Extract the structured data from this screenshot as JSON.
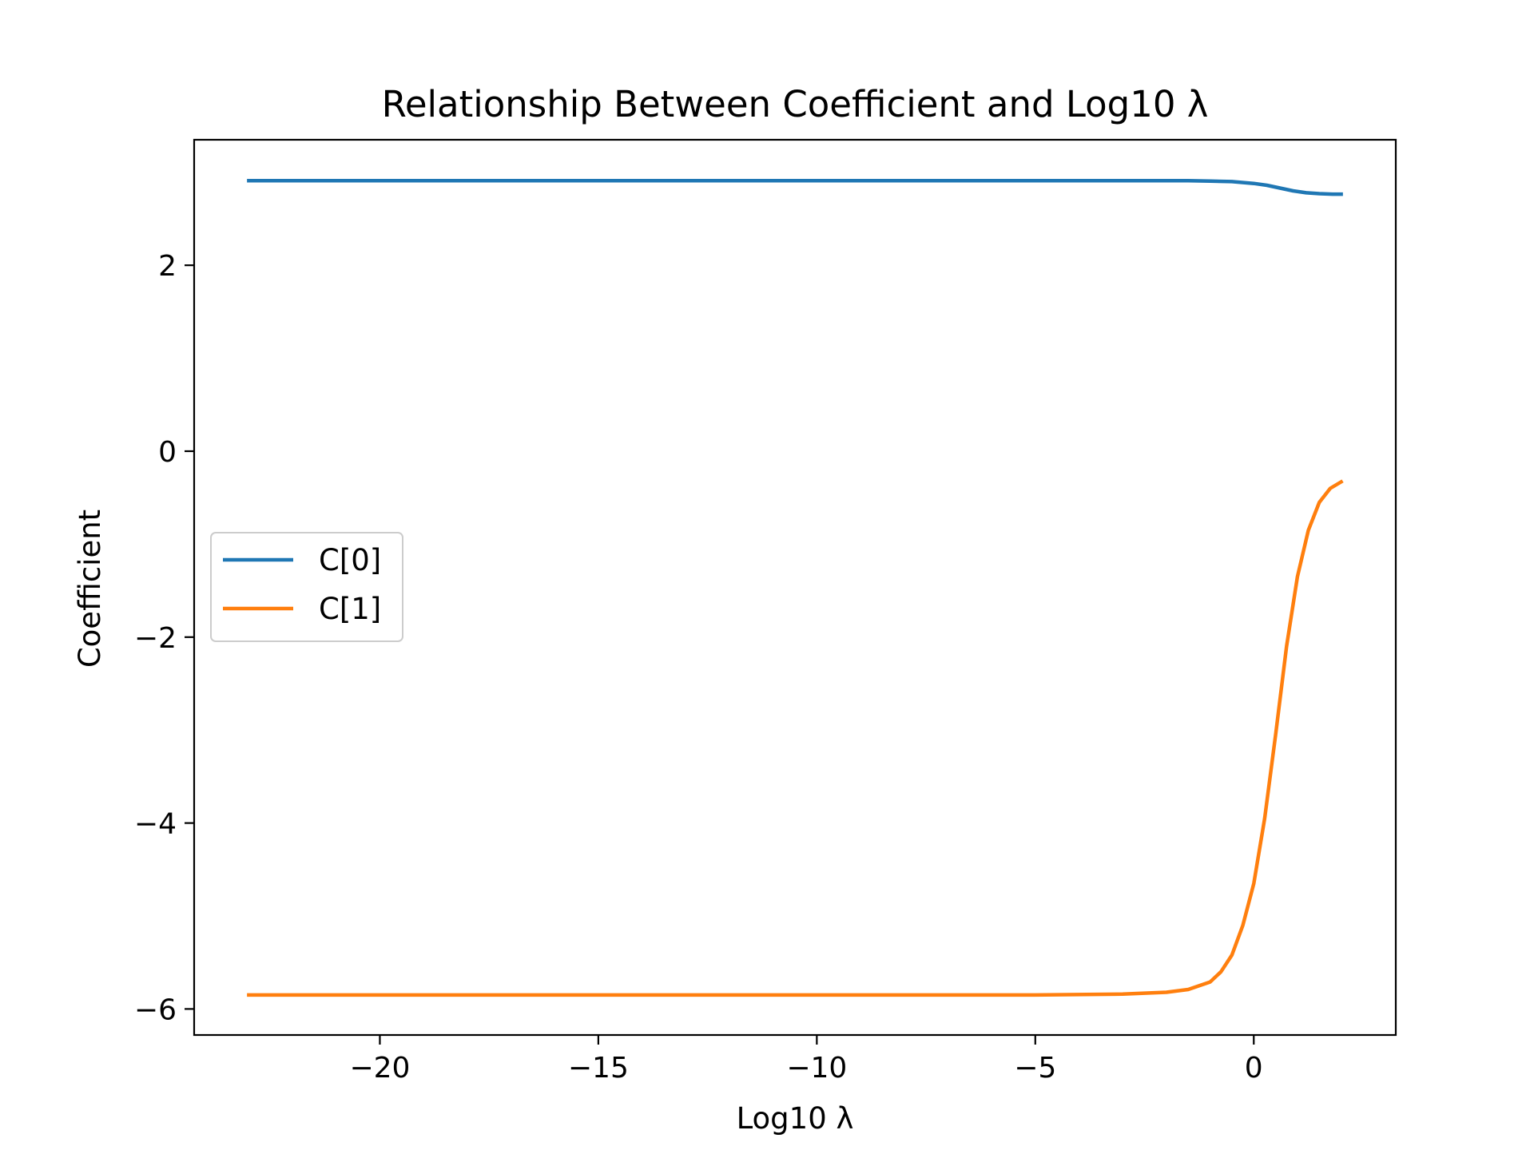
{
  "chart_data": {
    "type": "line",
    "title": "Relationship Between Coefficient and Log10 λ",
    "xlabel": "Log10 λ",
    "ylabel": "Coefficient",
    "xlim": [
      -24.25,
      3.25
    ],
    "ylim": [
      -6.28,
      3.35
    ],
    "xticks": [
      -20,
      -15,
      -10,
      -5,
      0
    ],
    "xtick_labels": [
      "−20",
      "−15",
      "−10",
      "−5",
      "0"
    ],
    "yticks": [
      2,
      0,
      -2,
      -4,
      -6
    ],
    "ytick_labels": [
      "2",
      "0",
      "−2",
      "−4",
      "−6"
    ],
    "grid": false,
    "legend_position": "center-left",
    "series": [
      {
        "name": "C[0]",
        "color": "#1f77b4",
        "x": [
          -23,
          -15,
          -10,
          -5,
          -3,
          -2,
          -1.5,
          -1,
          -0.5,
          0,
          0.3,
          0.6,
          0.9,
          1.2,
          1.5,
          1.8,
          2
        ],
        "y": [
          2.91,
          2.91,
          2.91,
          2.91,
          2.91,
          2.91,
          2.91,
          2.905,
          2.9,
          2.88,
          2.86,
          2.83,
          2.8,
          2.78,
          2.77,
          2.765,
          2.765
        ]
      },
      {
        "name": "C[1]",
        "color": "#ff7f0e",
        "x": [
          -23,
          -15,
          -10,
          -5,
          -3,
          -2,
          -1.5,
          -1,
          -0.75,
          -0.5,
          -0.25,
          0,
          0.25,
          0.5,
          0.75,
          1,
          1.25,
          1.5,
          1.75,
          2
        ],
        "y": [
          -5.85,
          -5.85,
          -5.85,
          -5.85,
          -5.84,
          -5.82,
          -5.79,
          -5.71,
          -5.6,
          -5.42,
          -5.1,
          -4.65,
          -3.95,
          -3.05,
          -2.1,
          -1.35,
          -0.85,
          -0.55,
          -0.4,
          -0.33
        ]
      }
    ]
  }
}
